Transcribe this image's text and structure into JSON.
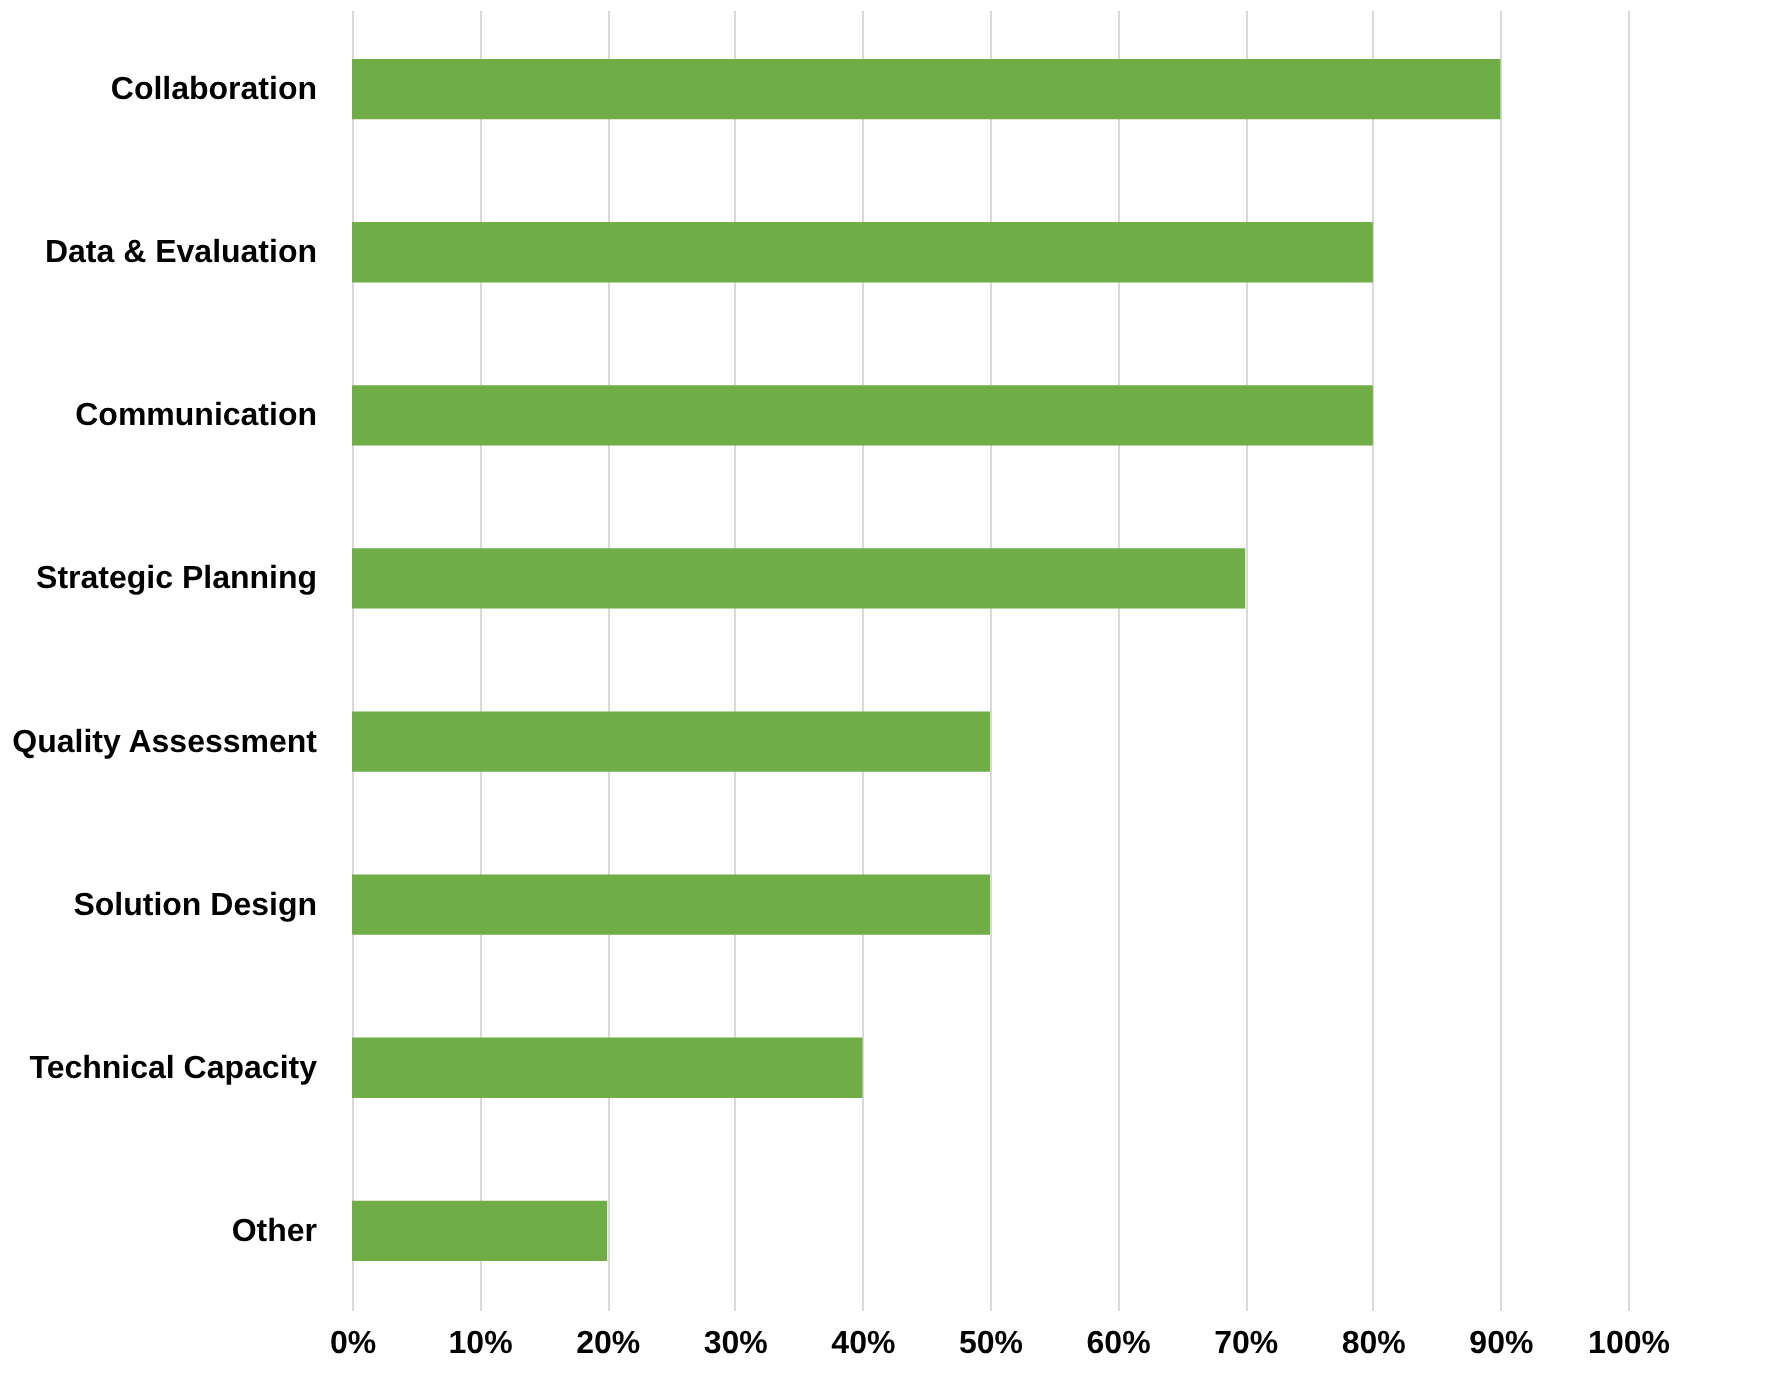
{
  "chart_data": {
    "type": "bar",
    "orientation": "horizontal",
    "categories": [
      "Collaboration",
      "Data & Evaluation",
      "Communication",
      "Strategic Planning",
      "Quality Assessment",
      "Solution Design",
      "Technical Capacity",
      "Other"
    ],
    "values": [
      90,
      80,
      80,
      70,
      50,
      50,
      40,
      20
    ],
    "color": "#70ad47",
    "xlim": [
      0,
      100
    ],
    "xticks": [
      {
        "value": 0,
        "label": "0%"
      },
      {
        "value": 10,
        "label": "10%"
      },
      {
        "value": 20,
        "label": "20%"
      },
      {
        "value": 30,
        "label": "30%"
      },
      {
        "value": 40,
        "label": "40%"
      },
      {
        "value": 50,
        "label": "50%"
      },
      {
        "value": 60,
        "label": "60%"
      },
      {
        "value": 70,
        "label": "70%"
      },
      {
        "value": 80,
        "label": "80%"
      },
      {
        "value": 90,
        "label": "90%"
      },
      {
        "value": 100,
        "label": "100%"
      }
    ],
    "grid": "x"
  }
}
